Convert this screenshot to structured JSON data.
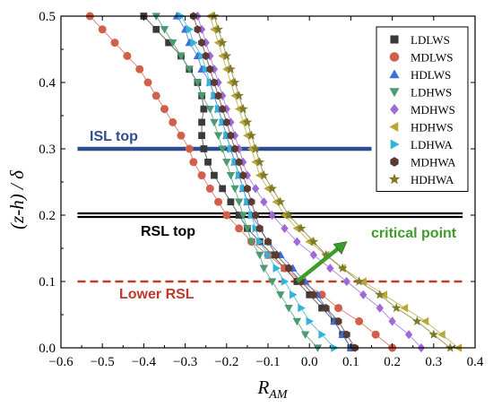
{
  "chart_data": {
    "type": "scatter",
    "xlabel": "R",
    "xlabel_sub": "AM",
    "ylabel": "(z-h) / δ",
    "xlim": [
      -0.6,
      0.4
    ],
    "ylim": [
      0,
      0.5
    ],
    "xticks": [
      "−0.6",
      "−0.5",
      "−0.4",
      "−0.3",
      "−0.2",
      "−0.1",
      "0.0",
      "0.1",
      "0.2",
      "0.3",
      "0.4"
    ],
    "yticks": [
      "0.0",
      "0.1",
      "0.2",
      "0.3",
      "0.4",
      "0.5"
    ],
    "legend_position": "top-right",
    "series": [
      {
        "name": "LDLWS",
        "color": "#3a3a3a",
        "marker": "square",
        "points": [
          [
            0.1,
            0
          ],
          [
            0.08,
            0.02
          ],
          [
            0.06,
            0.04
          ],
          [
            0.03,
            0.06
          ],
          [
            0.0,
            0.08
          ],
          [
            -0.03,
            0.1
          ],
          [
            -0.06,
            0.12
          ],
          [
            -0.09,
            0.14
          ],
          [
            -0.12,
            0.16
          ],
          [
            -0.15,
            0.18
          ],
          [
            -0.17,
            0.2
          ],
          [
            -0.19,
            0.22
          ],
          [
            -0.21,
            0.24
          ],
          [
            -0.23,
            0.26
          ],
          [
            -0.245,
            0.28
          ],
          [
            -0.255,
            0.3
          ],
          [
            -0.26,
            0.32
          ],
          [
            -0.26,
            0.34
          ],
          [
            -0.255,
            0.36
          ],
          [
            -0.26,
            0.38
          ],
          [
            -0.27,
            0.4
          ],
          [
            -0.29,
            0.42
          ],
          [
            -0.31,
            0.44
          ],
          [
            -0.34,
            0.46
          ],
          [
            -0.37,
            0.48
          ],
          [
            -0.4,
            0.5
          ]
        ]
      },
      {
        "name": "MDLWS",
        "color": "#d1604a",
        "marker": "circle",
        "points": [
          [
            0.2,
            0
          ],
          [
            0.16,
            0.02
          ],
          [
            0.12,
            0.04
          ],
          [
            0.07,
            0.06
          ],
          [
            0.03,
            0.08
          ],
          [
            -0.02,
            0.1
          ],
          [
            -0.06,
            0.12
          ],
          [
            -0.1,
            0.14
          ],
          [
            -0.14,
            0.16
          ],
          [
            -0.17,
            0.18
          ],
          [
            -0.2,
            0.2
          ],
          [
            -0.22,
            0.22
          ],
          [
            -0.24,
            0.24
          ],
          [
            -0.26,
            0.26
          ],
          [
            -0.28,
            0.28
          ],
          [
            -0.29,
            0.3
          ],
          [
            -0.31,
            0.32
          ],
          [
            -0.33,
            0.34
          ],
          [
            -0.35,
            0.36
          ],
          [
            -0.37,
            0.38
          ],
          [
            -0.39,
            0.4
          ],
          [
            -0.41,
            0.42
          ],
          [
            -0.44,
            0.44
          ],
          [
            -0.47,
            0.46
          ],
          [
            -0.5,
            0.48
          ],
          [
            -0.53,
            0.5
          ]
        ]
      },
      {
        "name": "HDLWS",
        "color": "#3e6fd8",
        "marker": "triangle-up",
        "points": [
          [
            0.1,
            0
          ],
          [
            0.08,
            0.02
          ],
          [
            0.06,
            0.04
          ],
          [
            0.04,
            0.06
          ],
          [
            0.02,
            0.08
          ],
          [
            -0.01,
            0.1
          ],
          [
            -0.04,
            0.12
          ],
          [
            -0.07,
            0.14
          ],
          [
            -0.1,
            0.16
          ],
          [
            -0.12,
            0.18
          ],
          [
            -0.14,
            0.2
          ],
          [
            -0.15,
            0.22
          ],
          [
            -0.16,
            0.24
          ],
          [
            -0.17,
            0.26
          ],
          [
            -0.18,
            0.28
          ],
          [
            -0.19,
            0.3
          ],
          [
            -0.2,
            0.32
          ],
          [
            -0.21,
            0.34
          ],
          [
            -0.22,
            0.36
          ],
          [
            -0.23,
            0.38
          ],
          [
            -0.24,
            0.4
          ],
          [
            -0.26,
            0.42
          ],
          [
            -0.27,
            0.44
          ],
          [
            -0.29,
            0.46
          ],
          [
            -0.3,
            0.48
          ],
          [
            -0.32,
            0.5
          ]
        ]
      },
      {
        "name": "LDHWS",
        "color": "#4a9a72",
        "marker": "triangle-down",
        "points": [
          [
            0.02,
            0
          ],
          [
            -0.01,
            0.02
          ],
          [
            -0.03,
            0.04
          ],
          [
            -0.05,
            0.06
          ],
          [
            -0.07,
            0.08
          ],
          [
            -0.09,
            0.1
          ],
          [
            -0.11,
            0.12
          ],
          [
            -0.12,
            0.14
          ],
          [
            -0.14,
            0.16
          ],
          [
            -0.15,
            0.18
          ],
          [
            -0.16,
            0.2
          ],
          [
            -0.17,
            0.22
          ],
          [
            -0.18,
            0.24
          ],
          [
            -0.19,
            0.26
          ],
          [
            -0.2,
            0.28
          ],
          [
            -0.21,
            0.3
          ],
          [
            -0.22,
            0.32
          ],
          [
            -0.23,
            0.34
          ],
          [
            -0.24,
            0.36
          ],
          [
            -0.26,
            0.38
          ],
          [
            -0.27,
            0.4
          ],
          [
            -0.29,
            0.42
          ],
          [
            -0.31,
            0.44
          ],
          [
            -0.33,
            0.46
          ],
          [
            -0.35,
            0.48
          ],
          [
            -0.37,
            0.5
          ]
        ]
      },
      {
        "name": "MDHWS",
        "color": "#a06ad6",
        "marker": "diamond",
        "points": [
          [
            0.27,
            0
          ],
          [
            0.24,
            0.02
          ],
          [
            0.2,
            0.04
          ],
          [
            0.17,
            0.06
          ],
          [
            0.13,
            0.08
          ],
          [
            0.09,
            0.1
          ],
          [
            0.05,
            0.12
          ],
          [
            0.01,
            0.14
          ],
          [
            -0.03,
            0.16
          ],
          [
            -0.06,
            0.18
          ],
          [
            -0.09,
            0.2
          ],
          [
            -0.11,
            0.22
          ],
          [
            -0.13,
            0.24
          ],
          [
            -0.15,
            0.26
          ],
          [
            -0.16,
            0.28
          ],
          [
            -0.17,
            0.3
          ],
          [
            -0.18,
            0.32
          ],
          [
            -0.19,
            0.34
          ],
          [
            -0.2,
            0.36
          ],
          [
            -0.21,
            0.38
          ],
          [
            -0.22,
            0.4
          ],
          [
            -0.23,
            0.42
          ],
          [
            -0.24,
            0.44
          ],
          [
            -0.25,
            0.46
          ],
          [
            -0.26,
            0.48
          ],
          [
            -0.27,
            0.5
          ]
        ]
      },
      {
        "name": "HDHWS",
        "color": "#b8a63a",
        "marker": "triangle-left",
        "points": [
          [
            0.36,
            0
          ],
          [
            0.32,
            0.02
          ],
          [
            0.28,
            0.04
          ],
          [
            0.23,
            0.06
          ],
          [
            0.18,
            0.08
          ],
          [
            0.13,
            0.1
          ],
          [
            0.08,
            0.12
          ],
          [
            0.04,
            0.14
          ],
          [
            0.0,
            0.16
          ],
          [
            -0.03,
            0.18
          ],
          [
            -0.06,
            0.2
          ],
          [
            -0.08,
            0.22
          ],
          [
            -0.1,
            0.24
          ],
          [
            -0.12,
            0.26
          ],
          [
            -0.13,
            0.28
          ],
          [
            -0.14,
            0.3
          ],
          [
            -0.15,
            0.32
          ],
          [
            -0.16,
            0.34
          ],
          [
            -0.17,
            0.36
          ],
          [
            -0.18,
            0.38
          ],
          [
            -0.19,
            0.4
          ],
          [
            -0.2,
            0.42
          ],
          [
            -0.21,
            0.44
          ],
          [
            -0.22,
            0.46
          ],
          [
            -0.23,
            0.48
          ],
          [
            -0.24,
            0.5
          ]
        ]
      },
      {
        "name": "LDHWA",
        "color": "#35b3d6",
        "marker": "triangle-right",
        "points": [
          [
            0.06,
            0
          ],
          [
            0.03,
            0.02
          ],
          [
            0.0,
            0.04
          ],
          [
            -0.02,
            0.06
          ],
          [
            -0.04,
            0.08
          ],
          [
            -0.06,
            0.1
          ],
          [
            -0.08,
            0.12
          ],
          [
            -0.1,
            0.14
          ],
          [
            -0.12,
            0.16
          ],
          [
            -0.13,
            0.18
          ],
          [
            -0.14,
            0.2
          ],
          [
            -0.15,
            0.22
          ],
          [
            -0.16,
            0.24
          ],
          [
            -0.17,
            0.26
          ],
          [
            -0.18,
            0.28
          ],
          [
            -0.19,
            0.3
          ],
          [
            -0.2,
            0.32
          ],
          [
            -0.21,
            0.34
          ],
          [
            -0.22,
            0.36
          ],
          [
            -0.23,
            0.38
          ],
          [
            -0.24,
            0.4
          ],
          [
            -0.25,
            0.42
          ],
          [
            -0.26,
            0.44
          ],
          [
            -0.28,
            0.46
          ],
          [
            -0.29,
            0.48
          ],
          [
            -0.31,
            0.5
          ]
        ]
      },
      {
        "name": "MDHWA",
        "color": "#5c3a34",
        "marker": "hexagon",
        "points": [
          [
            0.11,
            0
          ],
          [
            0.09,
            0.02
          ],
          [
            0.07,
            0.04
          ],
          [
            0.04,
            0.06
          ],
          [
            0.01,
            0.08
          ],
          [
            -0.02,
            0.1
          ],
          [
            -0.05,
            0.12
          ],
          [
            -0.08,
            0.14
          ],
          [
            -0.1,
            0.16
          ],
          [
            -0.12,
            0.18
          ],
          [
            -0.13,
            0.2
          ],
          [
            -0.14,
            0.22
          ],
          [
            -0.15,
            0.24
          ],
          [
            -0.16,
            0.26
          ],
          [
            -0.17,
            0.28
          ],
          [
            -0.18,
            0.3
          ],
          [
            -0.19,
            0.32
          ],
          [
            -0.2,
            0.34
          ],
          [
            -0.21,
            0.36
          ],
          [
            -0.22,
            0.38
          ],
          [
            -0.23,
            0.4
          ],
          [
            -0.24,
            0.42
          ],
          [
            -0.25,
            0.44
          ],
          [
            -0.26,
            0.46
          ],
          [
            -0.27,
            0.48
          ],
          [
            -0.28,
            0.5
          ]
        ]
      },
      {
        "name": "HDHWA",
        "color": "#7e7a2a",
        "marker": "star",
        "points": [
          [
            0.34,
            0
          ],
          [
            0.3,
            0.02
          ],
          [
            0.26,
            0.04
          ],
          [
            0.21,
            0.06
          ],
          [
            0.17,
            0.08
          ],
          [
            0.12,
            0.1
          ],
          [
            0.08,
            0.12
          ],
          [
            0.04,
            0.14
          ],
          [
            0.01,
            0.16
          ],
          [
            -0.02,
            0.18
          ],
          [
            -0.05,
            0.2
          ],
          [
            -0.07,
            0.22
          ],
          [
            -0.09,
            0.24
          ],
          [
            -0.11,
            0.26
          ],
          [
            -0.12,
            0.28
          ],
          [
            -0.13,
            0.3
          ],
          [
            -0.14,
            0.32
          ],
          [
            -0.15,
            0.34
          ],
          [
            -0.16,
            0.36
          ],
          [
            -0.17,
            0.38
          ],
          [
            -0.18,
            0.4
          ],
          [
            -0.19,
            0.42
          ],
          [
            -0.2,
            0.44
          ],
          [
            -0.21,
            0.46
          ],
          [
            -0.22,
            0.48
          ],
          [
            -0.23,
            0.5
          ]
        ]
      }
    ],
    "reference_lines": [
      {
        "label": "ISL top",
        "y": 0.3,
        "x_range": [
          -0.56,
          0.15
        ],
        "color": "#2e4d8f",
        "style": "solid"
      },
      {
        "label": "RSL top",
        "y": 0.2,
        "x_range": [
          -0.56,
          0.37
        ],
        "color": "#000000",
        "style": "double"
      },
      {
        "label": "Lower RSL",
        "y": 0.1,
        "x_range": [
          -0.56,
          0.37
        ],
        "color": "#c0392b",
        "style": "dashed"
      }
    ],
    "annotations": [
      {
        "text": "critical point",
        "color": "#3f9b2b",
        "arrow_from": [
          -0.03,
          0.1
        ],
        "arrow_to": [
          0.09,
          0.16
        ]
      }
    ]
  }
}
